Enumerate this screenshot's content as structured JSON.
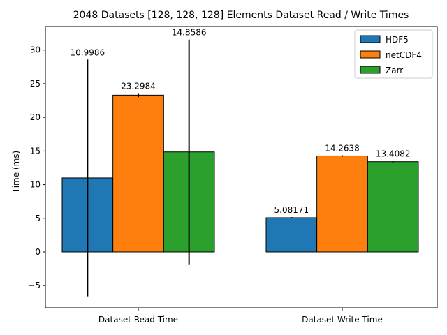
{
  "chart_data": {
    "type": "bar",
    "title": "2048 Datasets [128, 128, 128] Elements Dataset Read / Write Times",
    "xlabel": "",
    "ylabel": "Time (ms)",
    "categories": [
      "Dataset Read Time",
      "Dataset Write Time"
    ],
    "ylim": [
      -8.3,
      33.5
    ],
    "yticks": [
      -5,
      0,
      5,
      10,
      15,
      20,
      25,
      30
    ],
    "ytick_labels": [
      "−5",
      "0",
      "5",
      "10",
      "15",
      "20",
      "25",
      "30"
    ],
    "grid": false,
    "legend": {
      "position": "top-right"
    },
    "series": [
      {
        "name": "HDF5",
        "color": "#1f77b4",
        "values": [
          10.9986,
          5.08171
        ],
        "labels": [
          "10.9986",
          "5.08171"
        ],
        "errors": [
          17.6,
          0.1
        ]
      },
      {
        "name": "netCDF4",
        "color": "#ff7f0e",
        "values": [
          23.2984,
          14.2638
        ],
        "labels": [
          "23.2984",
          "14.2638"
        ],
        "errors": [
          0.3,
          0.1
        ]
      },
      {
        "name": "Zarr",
        "color": "#2ca02c",
        "values": [
          14.8586,
          13.4082
        ],
        "labels": [
          "14.8586",
          "13.4082"
        ],
        "errors": [
          16.7,
          0.1
        ]
      }
    ]
  }
}
